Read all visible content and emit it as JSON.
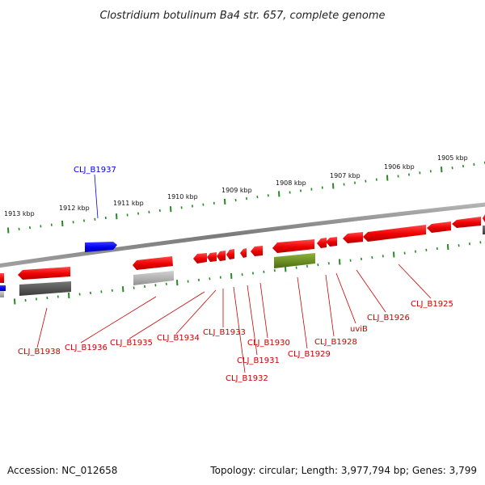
{
  "title": "Clostridium botulinum Ba4 str. 657, complete genome",
  "footer": {
    "accession": "Accession: NC_012658",
    "topology": "Topology: circular; Length: 3,977,794 bp; Genes: 3,799"
  },
  "colors": {
    "forward_gene": "#0000ee",
    "reverse_gene": "#ee0000",
    "rna_gene": "#6b8e23",
    "pseudo_dark": "#555555",
    "pseudo_light": "#b0b0b0",
    "tick": "#228b22",
    "backbone": "#888888"
  },
  "kbp_labels": [
    "1913 kbp",
    "1912 kbp",
    "1911 kbp",
    "1910 kbp",
    "1909 kbp",
    "1908 kbp",
    "1907 kbp",
    "1906 kbp",
    "1905 kbp"
  ],
  "gene_labels": [
    {
      "text": "CLJ_B1937",
      "strand": "forward"
    },
    {
      "text": "CLJ_B1938",
      "strand": "reverse"
    },
    {
      "text": "CLJ_B1936",
      "strand": "reverse"
    },
    {
      "text": "CLJ_B1935",
      "strand": "reverse"
    },
    {
      "text": "CLJ_B1934",
      "strand": "reverse"
    },
    {
      "text": "CLJ_B1933",
      "strand": "reverse"
    },
    {
      "text": "CLJ_B1932",
      "strand": "reverse"
    },
    {
      "text": "CLJ_B1931",
      "strand": "reverse"
    },
    {
      "text": "CLJ_B1930",
      "strand": "reverse"
    },
    {
      "text": "CLJ_B1929",
      "strand": "reverse"
    },
    {
      "text": "CLJ_B1928",
      "strand": "reverse"
    },
    {
      "text": "uviB",
      "strand": "reverse"
    },
    {
      "text": "CLJ_B1926",
      "strand": "reverse"
    },
    {
      "text": "CLJ_B1925",
      "strand": "reverse"
    }
  ]
}
